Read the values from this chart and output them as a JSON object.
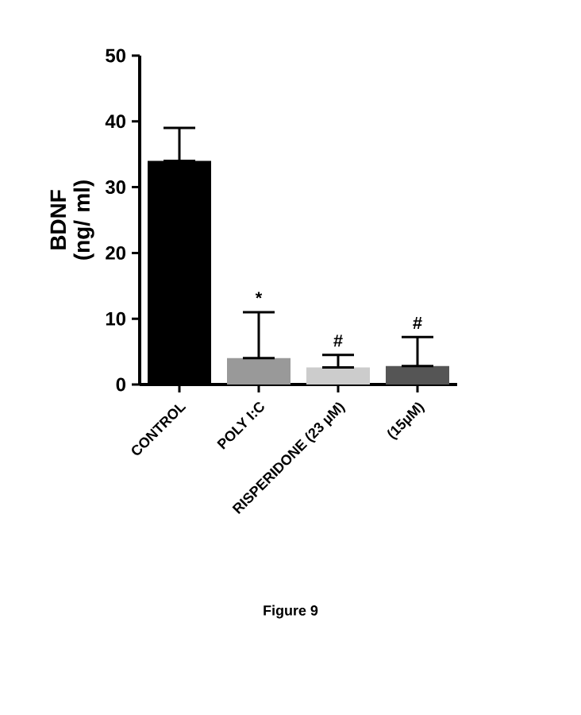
{
  "chart_data": {
    "type": "bar",
    "ylabel": "BDNF\n(ng/ ml)",
    "categories": [
      "CONTROL",
      "POLY I:C",
      "RISPERIDONE (23 µM)",
      "(15µM)"
    ],
    "values": [
      34,
      4,
      2.6,
      2.8
    ],
    "colors": [
      "#000000",
      "#999999",
      "#cccccc",
      "#555555"
    ],
    "errors": [
      [
        34,
        39
      ],
      [
        4,
        11
      ],
      [
        2.6,
        4.5
      ],
      [
        2.8,
        7.2
      ]
    ],
    "ylim": [
      0,
      50
    ],
    "yticks": [
      0,
      10,
      20,
      30,
      40,
      50
    ],
    "grid": false,
    "annotations": [
      {
        "text": "*",
        "x": "POLY I:C",
        "y": 11
      },
      {
        "text": "#",
        "x": "RISPERIDONE (23 µM)",
        "y": 4.5
      },
      {
        "text": "#",
        "x": "(15µM)",
        "y": 7.2
      },
      "Figure 9"
    ]
  }
}
